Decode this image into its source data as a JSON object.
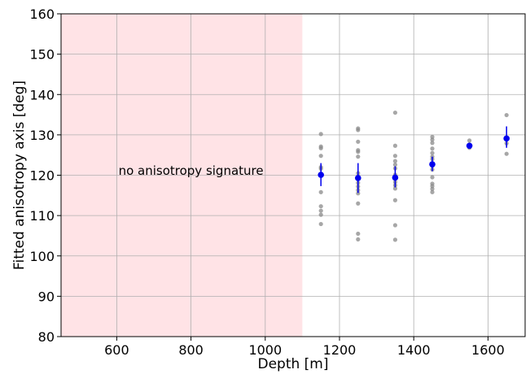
{
  "chart_data": {
    "type": "scatter",
    "xlabel": "Depth [m]",
    "ylabel": "Fitted anisotropy axis [deg]",
    "xlim": [
      450,
      1700
    ],
    "ylim": [
      80,
      160
    ],
    "xticks": [
      600,
      800,
      1000,
      1200,
      1400,
      1600
    ],
    "yticks": [
      80,
      90,
      100,
      110,
      120,
      130,
      140,
      150,
      160
    ],
    "grid": true,
    "shaded_region": {
      "x_from": 450,
      "x_to": 1100,
      "color": "#ffe3e6"
    },
    "annotation": {
      "text": "no anisotropy signature",
      "x": 800,
      "y": 121
    },
    "series": [
      {
        "role": "individual fits",
        "color": "#8a8a8a",
        "points": [
          {
            "x": 1150,
            "y": 130.2
          },
          {
            "x": 1150,
            "y": 127.1
          },
          {
            "x": 1150,
            "y": 126.7
          },
          {
            "x": 1150,
            "y": 124.8
          },
          {
            "x": 1150,
            "y": 122.0
          },
          {
            "x": 1150,
            "y": 121.6
          },
          {
            "x": 1150,
            "y": 115.8
          },
          {
            "x": 1150,
            "y": 112.3
          },
          {
            "x": 1150,
            "y": 111.2
          },
          {
            "x": 1150,
            "y": 110.2
          },
          {
            "x": 1150,
            "y": 107.9
          },
          {
            "x": 1250,
            "y": 131.6
          },
          {
            "x": 1250,
            "y": 131.2
          },
          {
            "x": 1250,
            "y": 128.3
          },
          {
            "x": 1250,
            "y": 126.2
          },
          {
            "x": 1250,
            "y": 125.8
          },
          {
            "x": 1250,
            "y": 124.6
          },
          {
            "x": 1250,
            "y": 120.5
          },
          {
            "x": 1250,
            "y": 119.0
          },
          {
            "x": 1250,
            "y": 118.1
          },
          {
            "x": 1250,
            "y": 117.2
          },
          {
            "x": 1250,
            "y": 116.3
          },
          {
            "x": 1250,
            "y": 115.5
          },
          {
            "x": 1250,
            "y": 113.0
          },
          {
            "x": 1250,
            "y": 105.5
          },
          {
            "x": 1250,
            "y": 104.1
          },
          {
            "x": 1350,
            "y": 135.5
          },
          {
            "x": 1350,
            "y": 127.3
          },
          {
            "x": 1350,
            "y": 124.8
          },
          {
            "x": 1350,
            "y": 123.5
          },
          {
            "x": 1350,
            "y": 122.6
          },
          {
            "x": 1350,
            "y": 121.7
          },
          {
            "x": 1350,
            "y": 120.1
          },
          {
            "x": 1350,
            "y": 119.3
          },
          {
            "x": 1350,
            "y": 118.3
          },
          {
            "x": 1350,
            "y": 117.5
          },
          {
            "x": 1350,
            "y": 116.7
          },
          {
            "x": 1350,
            "y": 113.8
          },
          {
            "x": 1350,
            "y": 107.6
          },
          {
            "x": 1350,
            "y": 104.0
          },
          {
            "x": 1450,
            "y": 129.5
          },
          {
            "x": 1450,
            "y": 128.8
          },
          {
            "x": 1450,
            "y": 128.0
          },
          {
            "x": 1450,
            "y": 126.6
          },
          {
            "x": 1450,
            "y": 125.5
          },
          {
            "x": 1450,
            "y": 124.6
          },
          {
            "x": 1450,
            "y": 124.0
          },
          {
            "x": 1450,
            "y": 122.3
          },
          {
            "x": 1450,
            "y": 121.4
          },
          {
            "x": 1450,
            "y": 119.5
          },
          {
            "x": 1450,
            "y": 117.9
          },
          {
            "x": 1450,
            "y": 117.3
          },
          {
            "x": 1450,
            "y": 116.6
          },
          {
            "x": 1450,
            "y": 115.8
          },
          {
            "x": 1550,
            "y": 128.6
          },
          {
            "x": 1550,
            "y": 127.6
          },
          {
            "x": 1550,
            "y": 126.8
          },
          {
            "x": 1650,
            "y": 134.9
          },
          {
            "x": 1650,
            "y": 127.9
          },
          {
            "x": 1650,
            "y": 125.3
          }
        ]
      },
      {
        "role": "mean with error bar",
        "color": "#0000ee",
        "points": [
          {
            "x": 1150,
            "y": 120.1,
            "yerr_low": 117.3,
            "yerr_high": 123.0
          },
          {
            "x": 1250,
            "y": 119.3,
            "yerr_low": 115.6,
            "yerr_high": 123.0
          },
          {
            "x": 1350,
            "y": 119.4,
            "yerr_low": 117.0,
            "yerr_high": 122.2
          },
          {
            "x": 1450,
            "y": 122.7,
            "yerr_low": 121.0,
            "yerr_high": 124.6
          },
          {
            "x": 1550,
            "y": 127.3,
            "yerr_low": 126.8,
            "yerr_high": 127.9
          },
          {
            "x": 1650,
            "y": 129.1,
            "yerr_low": 126.8,
            "yerr_high": 132.1
          }
        ]
      }
    ]
  }
}
